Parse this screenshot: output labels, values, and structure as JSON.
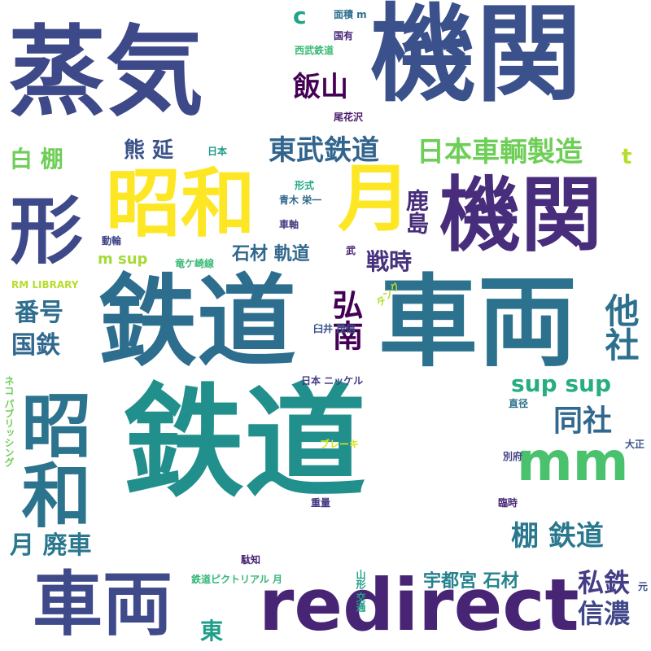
{
  "words": [
    {
      "text": "鉄道",
      "color": "#21908d"
    },
    {
      "text": "車両",
      "color": "#2c728e"
    },
    {
      "text": "鉄道",
      "color": "#2d6e8e"
    },
    {
      "text": "機関",
      "color": "#3b518b"
    },
    {
      "text": "蒸気",
      "color": "#3e4989"
    },
    {
      "text": "機関",
      "color": "#472d7b"
    },
    {
      "text": "redirect",
      "color": "#482475"
    },
    {
      "text": "車両",
      "color": "#3e4a89"
    },
    {
      "text": "昭和",
      "color": "#fde725"
    },
    {
      "text": "月",
      "color": "#fde725"
    },
    {
      "text": "形",
      "color": "#3e4989"
    },
    {
      "text": "昭和",
      "color": "#2c738e"
    },
    {
      "text": "mm",
      "color": "#4ac16d"
    },
    {
      "text": "日本車輌製造",
      "color": "#6ece58"
    },
    {
      "text": "東武鉄道",
      "color": "#32658e"
    },
    {
      "text": "白 棚",
      "color": "#6ece58"
    },
    {
      "text": "熊 延",
      "color": "#3b528b"
    },
    {
      "text": "飯山",
      "color": "#440154"
    },
    {
      "text": "石材 軌道",
      "color": "#31688e"
    },
    {
      "text": "戦時",
      "color": "#46327e"
    },
    {
      "text": "鹿島",
      "color": "#472d7b"
    },
    {
      "text": "弘南",
      "color": "#440154"
    },
    {
      "text": "他社",
      "color": "#2d708e"
    },
    {
      "text": "番号",
      "color": "#2e6e8e"
    },
    {
      "text": "国鉄",
      "color": "#31688e"
    },
    {
      "text": "sup sup",
      "color": "#27ad81"
    },
    {
      "text": "同社",
      "color": "#31688e"
    },
    {
      "text": "棚 鉄道",
      "color": "#2a788e"
    },
    {
      "text": "月 廃車",
      "color": "#2a778e"
    },
    {
      "text": "私鉄",
      "color": "#433e85"
    },
    {
      "text": "信濃",
      "color": "#3f4788"
    },
    {
      "text": "宇都宮 石材",
      "color": "#26828e"
    },
    {
      "text": "東",
      "color": "#1f9e89"
    },
    {
      "text": "t",
      "color": "#b5de2b"
    },
    {
      "text": "c",
      "color": "#20a386"
    },
    {
      "text": "m sup",
      "color": "#a5db36"
    },
    {
      "text": "RM LIBRARY",
      "color": "#b5de2b"
    },
    {
      "text": "面積 m",
      "color": "#2e6f8e"
    },
    {
      "text": "国有",
      "color": "#482878"
    },
    {
      "text": "西武鉄道",
      "color": "#3aba76"
    },
    {
      "text": "尾花沢",
      "color": "#48186a"
    },
    {
      "text": "日本",
      "color": "#1f998a"
    },
    {
      "text": "形式",
      "color": "#22a785"
    },
    {
      "text": "青木 栄一",
      "color": "#31688e"
    },
    {
      "text": "車軸",
      "color": "#443a83"
    },
    {
      "text": "動輪",
      "color": "#3f4788"
    },
    {
      "text": "竜ケ崎線",
      "color": "#3aba76"
    },
    {
      "text": "武",
      "color": "#482576"
    },
    {
      "text": "臼井 茂信",
      "color": "#3b528b"
    },
    {
      "text": "日本 ニッケル",
      "color": "#433e85"
    },
    {
      "text": "タンク",
      "color": "#b5de2b"
    },
    {
      "text": "ネコ パブリッシング",
      "color": "#6ece58"
    },
    {
      "text": "ブレーキ",
      "color": "#dde318"
    },
    {
      "text": "直径",
      "color": "#2c718e"
    },
    {
      "text": "大正",
      "color": "#3b528b"
    },
    {
      "text": "別府",
      "color": "#433e85"
    },
    {
      "text": "臨時",
      "color": "#482576"
    },
    {
      "text": "重量",
      "color": "#453781"
    },
    {
      "text": "駄知",
      "color": "#482576"
    },
    {
      "text": "鉄道ピクトリアル 月",
      "color": "#35b779"
    },
    {
      "text": "山形 交通",
      "color": "#1fa088"
    },
    {
      "text": "元",
      "color": "#3e4989"
    }
  ]
}
